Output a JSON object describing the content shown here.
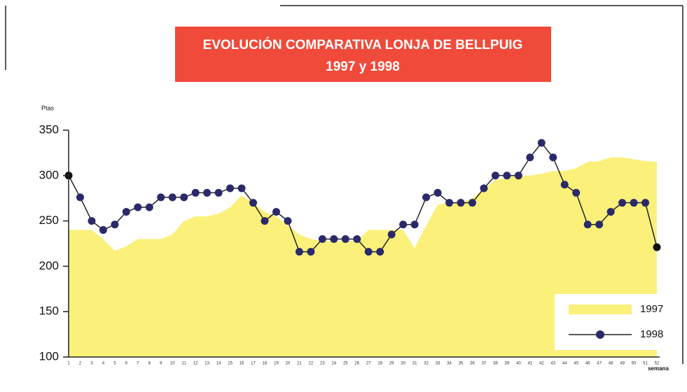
{
  "chart_data": {
    "type": "line",
    "title": "EVOLUCIÓN COMPARATIVA LONJA DE BELLPUIG",
    "subtitle": "1997 y 1998",
    "y_label": "Ptas",
    "x_label": "semana",
    "categories": [
      "1",
      "2",
      "3",
      "4",
      "5",
      "6",
      "7",
      "8",
      "9",
      "10",
      "11",
      "12",
      "13",
      "14",
      "15",
      "16",
      "17",
      "18",
      "19",
      "20",
      "21",
      "22",
      "23",
      "24",
      "25",
      "26",
      "27",
      "28",
      "29",
      "30",
      "31",
      "32",
      "33",
      "34",
      "35",
      "36",
      "37",
      "38",
      "39",
      "40",
      "41",
      "42",
      "43",
      "44",
      "45",
      "46",
      "47",
      "48",
      "49",
      "50",
      "51",
      "52"
    ],
    "series": [
      {
        "name": "1997",
        "type": "area",
        "color": "#fbf07a",
        "values": [
          240,
          240,
          240,
          230,
          217,
          222,
          230,
          230,
          230,
          235,
          250,
          255,
          255,
          258,
          265,
          278,
          270,
          260,
          255,
          245,
          235,
          230,
          228,
          228,
          228,
          228,
          240,
          240,
          240,
          240,
          220,
          245,
          268,
          270,
          270,
          275,
          285,
          295,
          298,
          300,
          300,
          302,
          305,
          305,
          308,
          315,
          316,
          320,
          320,
          318,
          316,
          315
        ]
      },
      {
        "name": "1998",
        "type": "line",
        "color": "#2a2a6a",
        "values": [
          300,
          276,
          250,
          240,
          246,
          260,
          265,
          265,
          276,
          276,
          276,
          281,
          281,
          281,
          286,
          286,
          270,
          250,
          260,
          250,
          216,
          216,
          230,
          230,
          230,
          230,
          216,
          216,
          235,
          246,
          246,
          276,
          281,
          270,
          270,
          270,
          286,
          300,
          300,
          300,
          320,
          336,
          320,
          290,
          281,
          246,
          246,
          260,
          270,
          270,
          270,
          221
        ]
      }
    ],
    "ylim": [
      100,
      350
    ],
    "yticks": [
      100,
      150,
      200,
      250,
      300,
      350
    ],
    "grid": false,
    "legend": "lower right"
  }
}
